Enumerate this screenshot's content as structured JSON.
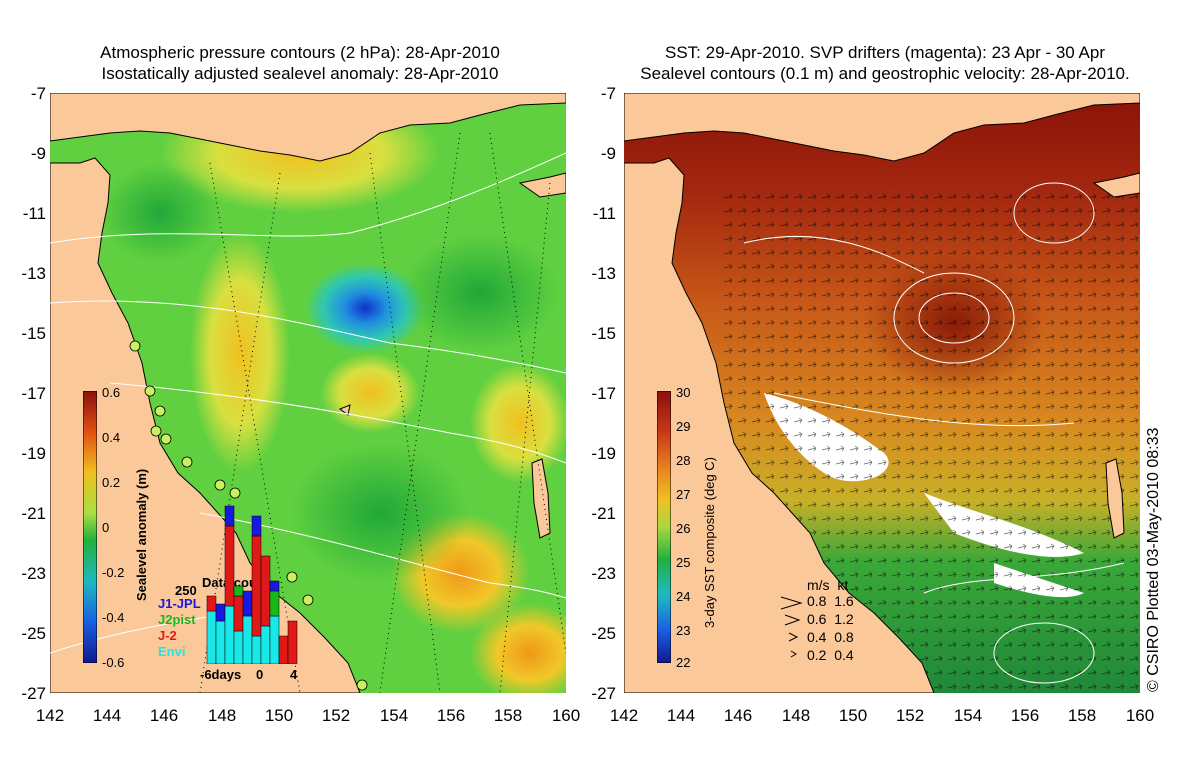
{
  "left": {
    "title_line1": "Atmospheric pressure contours (2 hPa): 28-Apr-2010",
    "title_line2": "Isostatically adjusted sealevel anomaly: 28-Apr-2010",
    "colorbar_label": "Sealevel anomaly (m)",
    "colorbar_ticks": [
      "0.6",
      "0.4",
      "0.2",
      "0",
      "-0.2",
      "-0.4",
      "-0.6"
    ],
    "legend": {
      "title": "Data count",
      "count": "250",
      "series": [
        {
          "name": "J1-JPL",
          "color": "#1818e0"
        },
        {
          "name": "J2pist",
          "color": "#18b818"
        },
        {
          "name": "J-2",
          "color": "#e01818"
        },
        {
          "name": "Envi",
          "color": "#18e8e8"
        }
      ],
      "axis_left": "-6days",
      "axis_mid": "0",
      "axis_right": "4"
    }
  },
  "right": {
    "title_line1": "SST: 29-Apr-2010. SVP drifters (magenta): 23 Apr - 30 Apr",
    "title_line2": "Sealevel contours (0.1 m) and geostrophic velocity: 28-Apr-2010.",
    "colorbar_label": "3-day SST composite (deg C)",
    "colorbar_ticks": [
      "30",
      "29",
      "28",
      "27",
      "26",
      "25",
      "24",
      "23",
      "22"
    ],
    "velocity_legend": {
      "header_ms": "m/s",
      "header_kt": "kt",
      "rows": [
        {
          "ms": "0.8",
          "kt": "1.6"
        },
        {
          "ms": "0.6",
          "kt": "1.2"
        },
        {
          "ms": "0.4",
          "kt": "0.8"
        },
        {
          "ms": "0.2",
          "kt": "0.4"
        }
      ]
    },
    "credit": "© CSIRO Plotted 03-May-2010 08:33"
  },
  "lat_ticks": [
    "-7",
    "-9",
    "-11",
    "-13",
    "-15",
    "-17",
    "-19",
    "-21",
    "-23",
    "-25",
    "-27"
  ],
  "lon_ticks": [
    "142",
    "144",
    "146",
    "148",
    "150",
    "152",
    "154",
    "156",
    "158",
    "160"
  ],
  "colors": {
    "land": "#fbc89a",
    "sla_mid": "#58d040",
    "sst_warm": "#8a1208",
    "sst_mid": "#d07a18",
    "sst_cool": "#2aa83a"
  }
}
